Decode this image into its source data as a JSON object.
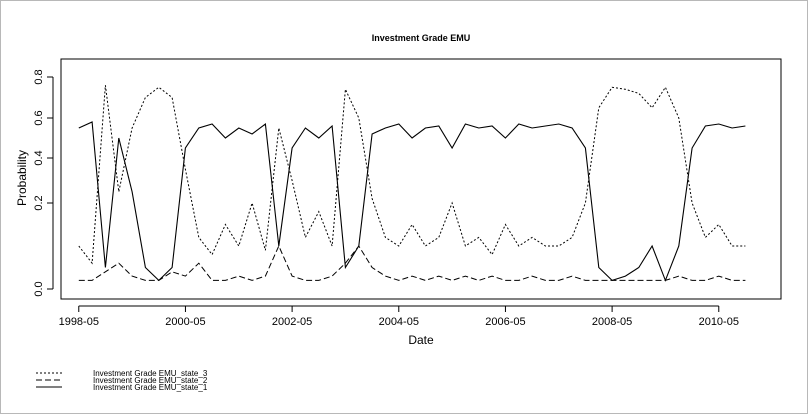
{
  "chart_data": {
    "type": "line",
    "title": "Investment Grade EMU",
    "xlabel": "Date",
    "ylabel": "Probability",
    "x_range": [
      "1998-01",
      "2011-07"
    ],
    "ylim": [
      -0.02,
      0.8
    ],
    "y_scale": "nonlinear, as printed tick labels (0.0 and 0.2 placed unevenly)",
    "y_ticks": [
      {
        "value": 0.0,
        "label": "0.0"
      },
      {
        "value": 0.2,
        "label": "0.2"
      },
      {
        "value": 0.4,
        "label": "0.4"
      },
      {
        "value": 0.6,
        "label": "0.6"
      },
      {
        "value": 0.8,
        "label": "0.8"
      }
    ],
    "x_ticks": [
      "1998-05",
      "2000-05",
      "2002-05",
      "2004-05",
      "2006-05",
      "2008-05",
      "2010-05"
    ],
    "grid": false,
    "legend_position": "bottom-left, outside plot",
    "series": [
      {
        "name": "Investment Grade EMU_state_3",
        "style": "dotted",
        "x": [
          "1998-05",
          "1998-08",
          "1998-11",
          "1999-02",
          "1999-05",
          "1999-08",
          "1999-11",
          "2000-02",
          "2000-05",
          "2000-08",
          "2000-11",
          "2001-02",
          "2001-05",
          "2001-08",
          "2001-11",
          "2002-02",
          "2002-05",
          "2002-08",
          "2002-11",
          "2003-02",
          "2003-05",
          "2003-08",
          "2003-11",
          "2004-02",
          "2004-05",
          "2004-08",
          "2004-11",
          "2005-02",
          "2005-05",
          "2005-08",
          "2005-11",
          "2006-02",
          "2006-05",
          "2006-08",
          "2006-11",
          "2007-02",
          "2007-05",
          "2007-08",
          "2007-11",
          "2008-02",
          "2008-05",
          "2008-08",
          "2008-11",
          "2009-02",
          "2009-05",
          "2009-08",
          "2009-11",
          "2010-02",
          "2010-05",
          "2010-08",
          "2010-11"
        ],
        "y": [
          0.1,
          0.06,
          0.76,
          0.25,
          0.55,
          0.7,
          0.75,
          0.7,
          0.35,
          0.12,
          0.08,
          0.15,
          0.1,
          0.2,
          0.09,
          0.55,
          0.3,
          0.12,
          0.18,
          0.1,
          0.74,
          0.6,
          0.22,
          0.12,
          0.1,
          0.15,
          0.1,
          0.12,
          0.2,
          0.1,
          0.12,
          0.08,
          0.15,
          0.1,
          0.12,
          0.1,
          0.1,
          0.12,
          0.2,
          0.65,
          0.75,
          0.74,
          0.72,
          0.65,
          0.75,
          0.6,
          0.2,
          0.12,
          0.15,
          0.1,
          0.1
        ]
      },
      {
        "name": "Investment Grade EMU_state_2",
        "style": "dashed",
        "x": [
          "1998-05",
          "1998-08",
          "1998-11",
          "1999-02",
          "1999-05",
          "1999-08",
          "1999-11",
          "2000-02",
          "2000-05",
          "2000-08",
          "2000-11",
          "2001-02",
          "2001-05",
          "2001-08",
          "2001-11",
          "2002-02",
          "2002-05",
          "2002-08",
          "2002-11",
          "2003-02",
          "2003-05",
          "2003-08",
          "2003-11",
          "2004-02",
          "2004-05",
          "2004-08",
          "2004-11",
          "2005-02",
          "2005-05",
          "2005-08",
          "2005-11",
          "2006-02",
          "2006-05",
          "2006-08",
          "2006-11",
          "2007-02",
          "2007-05",
          "2007-08",
          "2007-11",
          "2008-02",
          "2008-05",
          "2008-08",
          "2008-11",
          "2009-02",
          "2009-05",
          "2009-08",
          "2009-11",
          "2010-02",
          "2010-05",
          "2010-08",
          "2010-11"
        ],
        "y": [
          0.02,
          0.02,
          0.04,
          0.06,
          0.03,
          0.02,
          0.02,
          0.04,
          0.03,
          0.06,
          0.02,
          0.02,
          0.03,
          0.02,
          0.03,
          0.1,
          0.03,
          0.02,
          0.02,
          0.03,
          0.06,
          0.1,
          0.05,
          0.03,
          0.02,
          0.03,
          0.02,
          0.03,
          0.02,
          0.03,
          0.02,
          0.03,
          0.02,
          0.02,
          0.03,
          0.02,
          0.02,
          0.03,
          0.02,
          0.02,
          0.02,
          0.02,
          0.02,
          0.02,
          0.02,
          0.03,
          0.02,
          0.02,
          0.03,
          0.02,
          0.02
        ]
      },
      {
        "name": "Investment Grade EMU_state_1",
        "style": "solid",
        "x": [
          "1998-05",
          "1998-08",
          "1998-11",
          "1999-02",
          "1999-05",
          "1999-08",
          "1999-11",
          "2000-02",
          "2000-05",
          "2000-08",
          "2000-11",
          "2001-02",
          "2001-05",
          "2001-08",
          "2001-11",
          "2002-02",
          "2002-05",
          "2002-08",
          "2002-11",
          "2003-02",
          "2003-05",
          "2003-08",
          "2003-11",
          "2004-02",
          "2004-05",
          "2004-08",
          "2004-11",
          "2005-02",
          "2005-05",
          "2005-08",
          "2005-11",
          "2006-02",
          "2006-05",
          "2006-08",
          "2006-11",
          "2007-02",
          "2007-05",
          "2007-08",
          "2007-11",
          "2008-02",
          "2008-05",
          "2008-08",
          "2008-11",
          "2009-02",
          "2009-05",
          "2009-08",
          "2009-11",
          "2010-02",
          "2010-05",
          "2010-08",
          "2010-11"
        ],
        "y": [
          0.55,
          0.58,
          0.05,
          0.5,
          0.25,
          0.05,
          0.02,
          0.05,
          0.45,
          0.55,
          0.57,
          0.5,
          0.55,
          0.52,
          0.57,
          0.1,
          0.45,
          0.55,
          0.5,
          0.56,
          0.05,
          0.1,
          0.52,
          0.55,
          0.57,
          0.5,
          0.55,
          0.56,
          0.45,
          0.57,
          0.55,
          0.56,
          0.5,
          0.57,
          0.55,
          0.56,
          0.57,
          0.55,
          0.45,
          0.05,
          0.02,
          0.03,
          0.05,
          0.1,
          0.02,
          0.1,
          0.45,
          0.56,
          0.57,
          0.55,
          0.56
        ]
      }
    ]
  }
}
